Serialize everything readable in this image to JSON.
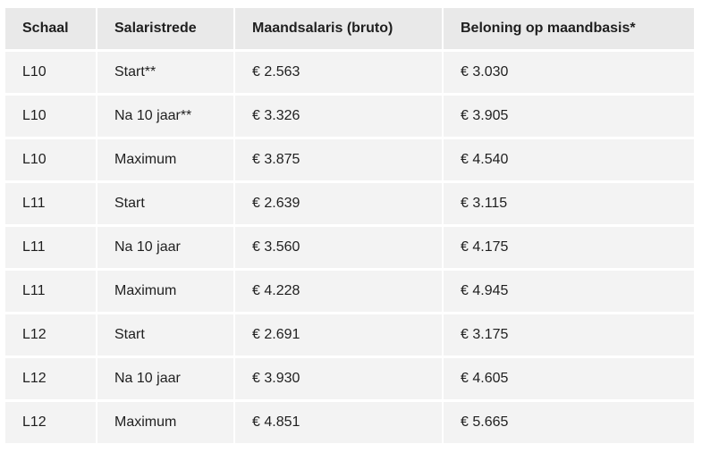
{
  "table": {
    "headers": [
      "Schaal",
      "Salaristrede",
      "Maandsalaris (bruto)",
      "Beloning op maandbasis*"
    ],
    "rows": [
      [
        "L10",
        "Start**",
        "€ 2.563",
        "€ 3.030"
      ],
      [
        "L10",
        "Na 10 jaar**",
        "€ 3.326",
        "€ 3.905"
      ],
      [
        "L10",
        "Maximum",
        "€ 3.875",
        "€ 4.540"
      ],
      [
        "L11",
        "Start",
        "€ 2.639",
        "€ 3.115"
      ],
      [
        "L11",
        "Na 10 jaar",
        "€ 3.560",
        "€ 4.175"
      ],
      [
        "L11",
        "Maximum",
        "€ 4.228",
        "€ 4.945"
      ],
      [
        "L12",
        "Start",
        "€ 2.691",
        "€ 3.175"
      ],
      [
        "L12",
        "Na 10 jaar",
        "€ 3.930",
        "€ 4.605"
      ],
      [
        "L12",
        "Maximum",
        "€ 4.851",
        "€ 5.665"
      ]
    ]
  }
}
